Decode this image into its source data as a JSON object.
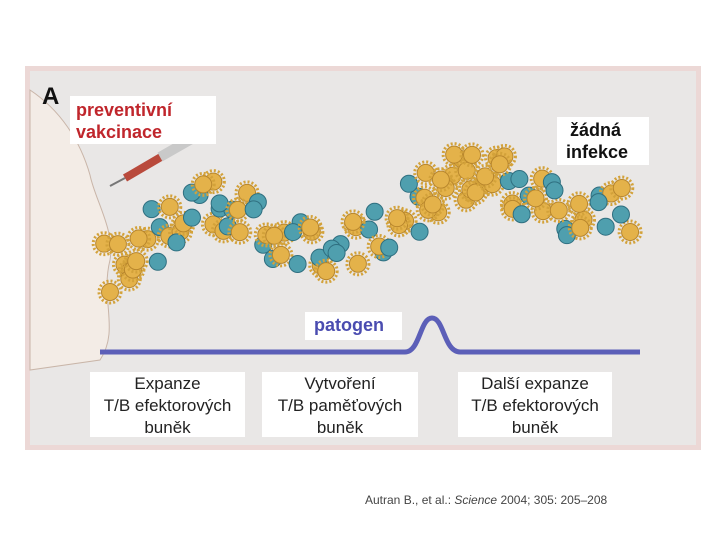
{
  "panel_label": "A",
  "vaccination": [
    "preventivní",
    "vakcinace"
  ],
  "no_infection": [
    "žádná",
    "infekce"
  ],
  "pathogen": "patogen",
  "phases": [
    {
      "lines": [
        "Expanze",
        "T/B efektorových",
        "buněk"
      ]
    },
    {
      "lines": [
        "Vytvoření",
        "T/B paměťových",
        "buněk"
      ]
    },
    {
      "lines": [
        "Další expanze",
        "T/B efektorových",
        "buněk"
      ]
    }
  ],
  "citation": {
    "authors": "Autran B., et al.:",
    "journal": "Science",
    "details": "2004; 305: 205–208"
  }
}
